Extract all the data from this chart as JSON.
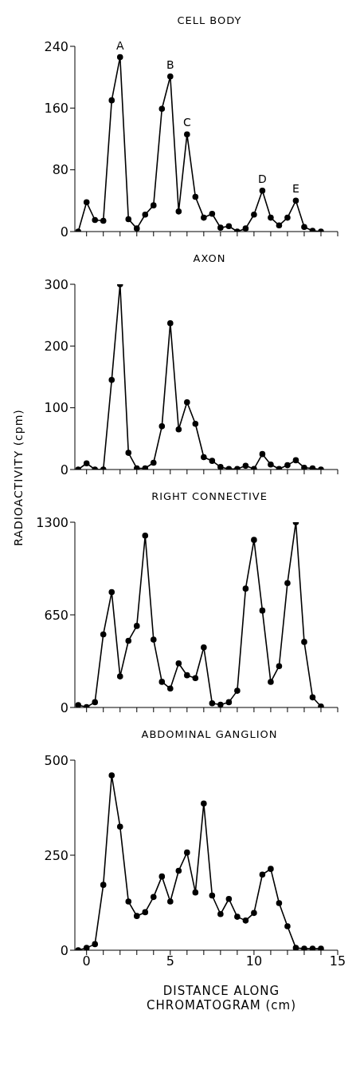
{
  "chart_data": [
    {
      "type": "line",
      "title": "CELL BODY",
      "x": [
        -0.5,
        0,
        0.5,
        1,
        1.5,
        2,
        2.5,
        3,
        3.5,
        4,
        4.5,
        5,
        5.5,
        6,
        6.5,
        7,
        7.5,
        8,
        8.5,
        9,
        9.5,
        10,
        10.5,
        11,
        11.5,
        12,
        12.5,
        13,
        13.5,
        14
      ],
      "series": [
        {
          "color": "#000000",
          "values": [
            0,
            38,
            15,
            14,
            170,
            226,
            16,
            4,
            22,
            34,
            159,
            201,
            26,
            126,
            45,
            18,
            23,
            5,
            7,
            0,
            4,
            22,
            53,
            18,
            8,
            18,
            40,
            6,
            1,
            0
          ]
        }
      ],
      "xlim": [
        -0.7,
        15
      ],
      "xticks": [
        0,
        {
          "value": 1,
          "label": null
        },
        {
          "value": 2,
          "label": null
        },
        {
          "value": 3,
          "label": null
        },
        {
          "value": 4,
          "label": null
        },
        5,
        {
          "value": 6,
          "label": null
        },
        {
          "value": 7,
          "label": null
        },
        {
          "value": 8,
          "label": null
        },
        {
          "value": 9,
          "label": null
        },
        10,
        {
          "value": 11,
          "label": null
        },
        {
          "value": 12,
          "label": null
        },
        {
          "value": 13,
          "label": null
        },
        {
          "value": 14,
          "label": null
        },
        15
      ],
      "ylim": [
        0,
        240
      ],
      "yticks": [
        0,
        80,
        160,
        240
      ],
      "marker": "circle",
      "tick_labels": "y",
      "annotations": [
        {
          "text": "A",
          "x": 2,
          "y": 226
        },
        {
          "text": "B",
          "x": 5,
          "y": 201
        },
        {
          "text": "C",
          "x": 6,
          "y": 126
        },
        {
          "text": "D",
          "x": 10.5,
          "y": 53
        },
        {
          "text": "E",
          "x": 12.5,
          "y": 40
        }
      ]
    },
    {
      "type": "line",
      "title": "AXON",
      "ylabel": "RADIOACTIVITY (cpm)",
      "x": [
        -0.5,
        0,
        0.5,
        1,
        1.5,
        2,
        2.5,
        3,
        3.5,
        4,
        4.5,
        5,
        5.5,
        6,
        6.5,
        7,
        7.5,
        8,
        8.5,
        9,
        9.5,
        10,
        10.5,
        11,
        11.5,
        12,
        12.5,
        13,
        13.5,
        14
      ],
      "series": [
        {
          "color": "#000000",
          "values": [
            0,
            10,
            0,
            0,
            145,
            300,
            27,
            2,
            2,
            11,
            70,
            237,
            65,
            109,
            74,
            20,
            14,
            4,
            1,
            1,
            6,
            1,
            25,
            8,
            1,
            7,
            15,
            3,
            2,
            0
          ]
        }
      ],
      "xlim": [
        -0.7,
        15
      ],
      "xticks": [
        0,
        {
          "value": 1,
          "label": null
        },
        {
          "value": 2,
          "label": null
        },
        {
          "value": 3,
          "label": null
        },
        {
          "value": 4,
          "label": null
        },
        5,
        {
          "value": 6,
          "label": null
        },
        {
          "value": 7,
          "label": null
        },
        {
          "value": 8,
          "label": null
        },
        {
          "value": 9,
          "label": null
        },
        10,
        {
          "value": 11,
          "label": null
        },
        {
          "value": 12,
          "label": null
        },
        {
          "value": 13,
          "label": null
        },
        {
          "value": 14,
          "label": null
        },
        15
      ],
      "ylim": [
        0,
        300
      ],
      "yticks": [
        0,
        100,
        200,
        300
      ],
      "marker": "circle",
      "tick_labels": "y"
    },
    {
      "type": "line",
      "title": "RIGHT CONNECTIVE",
      "x": [
        -0.5,
        0,
        0.5,
        1,
        1.5,
        2,
        2.5,
        3,
        3.5,
        4,
        4.5,
        5,
        5.5,
        6,
        6.5,
        7,
        7.5,
        8,
        8.5,
        9,
        9.5,
        10,
        10.5,
        11,
        11.5,
        12,
        12.5,
        13,
        13.5,
        14
      ],
      "series": [
        {
          "color": "#000000",
          "values": [
            17,
            3,
            37,
            513,
            809,
            218,
            468,
            572,
            1206,
            476,
            180,
            133,
            310,
            226,
            206,
            422,
            29,
            20,
            37,
            117,
            834,
            1176,
            680,
            179,
            290,
            873,
            1300,
            460,
            71,
            7
          ]
        }
      ],
      "xlim": [
        -0.7,
        15
      ],
      "xticks": [
        0,
        {
          "value": 1,
          "label": null
        },
        {
          "value": 2,
          "label": null
        },
        {
          "value": 3,
          "label": null
        },
        {
          "value": 4,
          "label": null
        },
        5,
        {
          "value": 6,
          "label": null
        },
        {
          "value": 7,
          "label": null
        },
        {
          "value": 8,
          "label": null
        },
        {
          "value": 9,
          "label": null
        },
        10,
        {
          "value": 11,
          "label": null
        },
        {
          "value": 12,
          "label": null
        },
        {
          "value": 13,
          "label": null
        },
        {
          "value": 14,
          "label": null
        },
        15
      ],
      "ylim": [
        0,
        1300
      ],
      "yticks": [
        0,
        650,
        1300
      ],
      "marker": "circle",
      "tick_labels": "y"
    },
    {
      "type": "line",
      "title": "ABDOMINAL GANGLION",
      "xlabel": "DISTANCE ALONG CHROMATOGRAM (cm)",
      "x": [
        -0.5,
        0,
        0.5,
        1,
        1.5,
        2,
        2.5,
        3,
        3.5,
        4,
        4.5,
        5,
        5.5,
        6,
        6.5,
        7,
        7.5,
        8,
        8.5,
        9,
        9.5,
        10,
        10.5,
        11,
        11.5,
        12,
        12.5,
        13,
        13.5,
        14
      ],
      "series": [
        {
          "color": "#000000",
          "values": [
            0,
            6,
            16,
            172,
            460,
            325,
            128,
            90,
            100,
            140,
            194,
            128,
            209,
            257,
            152,
            386,
            144,
            95,
            135,
            88,
            78,
            98,
            199,
            214,
            124,
            63,
            6,
            4,
            4,
            4
          ]
        }
      ],
      "xlim": [
        -0.7,
        15
      ],
      "xticks": [
        0,
        {
          "value": 1,
          "label": null
        },
        {
          "value": 2,
          "label": null
        },
        {
          "value": 3,
          "label": null
        },
        {
          "value": 4,
          "label": null
        },
        5,
        {
          "value": 6,
          "label": null
        },
        {
          "value": 7,
          "label": null
        },
        {
          "value": 8,
          "label": null
        },
        {
          "value": 9,
          "label": null
        },
        10,
        {
          "value": 11,
          "label": null
        },
        {
          "value": 12,
          "label": null
        },
        {
          "value": 13,
          "label": null
        },
        {
          "value": 14,
          "label": null
        },
        15
      ],
      "ylim": [
        0,
        500
      ],
      "yticks": [
        0,
        250,
        500
      ],
      "marker": "circle"
    }
  ]
}
